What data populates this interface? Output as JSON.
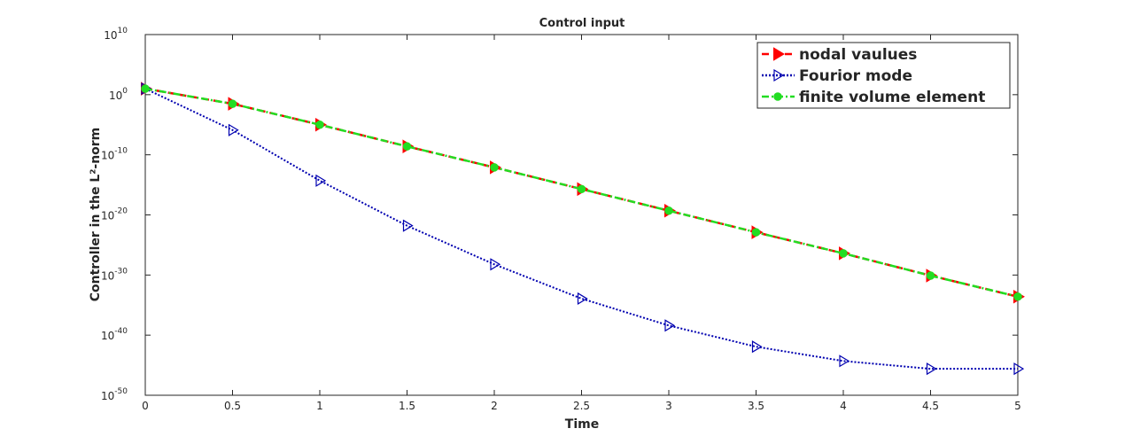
{
  "chart_data": {
    "type": "line",
    "title": "Control input",
    "x_label": "Time",
    "y_label": "Controller in the L²-norm",
    "yscale": "log",
    "x": [
      0,
      0.5,
      1,
      1.5,
      2,
      2.5,
      3,
      3.5,
      4,
      4.5,
      5
    ],
    "xlim": [
      0,
      5
    ],
    "xticks": [
      0,
      0.5,
      1,
      1.5,
      2,
      2.5,
      3,
      3.5,
      4,
      4.5,
      5
    ],
    "ylim": [
      1e-50,
      10000000000.0
    ],
    "yticks": [
      {
        "value": 10000000000.0,
        "label": {
          "base": "10",
          "exponent": "10"
        }
      },
      {
        "value": 1,
        "label": {
          "base": "10",
          "exponent": "0"
        }
      },
      {
        "value": 1e-10,
        "label": {
          "base": "10",
          "exponent": "-10"
        }
      },
      {
        "value": 1e-20,
        "label": {
          "base": "10",
          "exponent": "-20"
        }
      },
      {
        "value": 1e-30,
        "label": {
          "base": "10",
          "exponent": "-30"
        }
      },
      {
        "value": 1e-40,
        "label": {
          "base": "10",
          "exponent": "-40"
        }
      },
      {
        "value": 1e-50,
        "label": {
          "base": "10",
          "exponent": "-50"
        }
      }
    ],
    "grid": false,
    "legend_position": "upper right",
    "series": [
      {
        "name": "nodal vaulues",
        "color": "#ff0000",
        "line_style": "dashed",
        "marker": "triangle-right-filled",
        "values": [
          10,
          0.03,
          1e-05,
          2.5e-09,
          8e-13,
          2e-16,
          5e-20,
          1.3e-23,
          4e-27,
          8e-31,
          2.5e-34
        ]
      },
      {
        "name": "Fourior mode",
        "color": "#0000b0",
        "line_style": "dotted",
        "marker": "triangle-right-open",
        "values": [
          10,
          1.3e-06,
          5e-15,
          1.6e-22,
          6e-29,
          1.2e-34,
          4e-39,
          1.2e-42,
          5e-45,
          2.5e-46,
          2.5e-46
        ]
      },
      {
        "name": "finite volume element",
        "color": "#22dd22",
        "line_style": "dashdot",
        "marker": "star-filled",
        "values": [
          10,
          0.03,
          1e-05,
          2.5e-09,
          8e-13,
          2e-16,
          5e-20,
          1.3e-23,
          4e-27,
          8e-31,
          2.5e-34
        ]
      }
    ]
  }
}
